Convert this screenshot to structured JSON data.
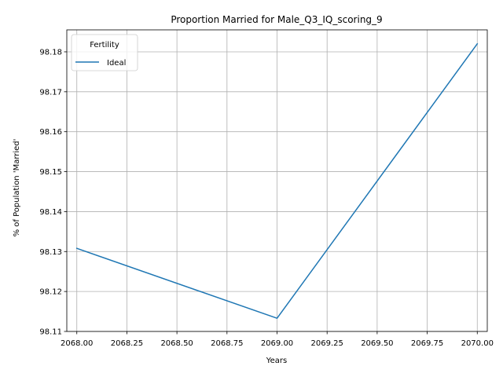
{
  "chart_data": {
    "type": "line",
    "title": "Proportion Married for Male_Q3_IQ_scoring_9",
    "xlabel": "Years",
    "ylabel": "% of Population 'Married'",
    "xlim": [
      2067.95,
      2070.05
    ],
    "ylim": [
      98.11,
      98.1855
    ],
    "grid": true,
    "x_ticks": [
      2068.0,
      2068.25,
      2068.5,
      2068.75,
      2069.0,
      2069.25,
      2069.5,
      2069.75,
      2070.0
    ],
    "x_tick_labels": [
      "2068.00",
      "2068.25",
      "2068.50",
      "2068.75",
      "2069.00",
      "2069.25",
      "2069.50",
      "2069.75",
      "2070.00"
    ],
    "y_ticks": [
      98.11,
      98.12,
      98.13,
      98.14,
      98.15,
      98.16,
      98.17,
      98.18
    ],
    "y_tick_labels": [
      "98.11",
      "98.12",
      "98.13",
      "98.14",
      "98.15",
      "98.16",
      "98.17",
      "98.18"
    ],
    "legend": {
      "title": "Fertility",
      "placement": "top-left"
    },
    "series": [
      {
        "name": "Ideal",
        "color": "#1f77b4",
        "x": [
          2068,
          2069,
          2070
        ],
        "y": [
          98.1308,
          98.1133,
          98.182
        ]
      }
    ]
  }
}
